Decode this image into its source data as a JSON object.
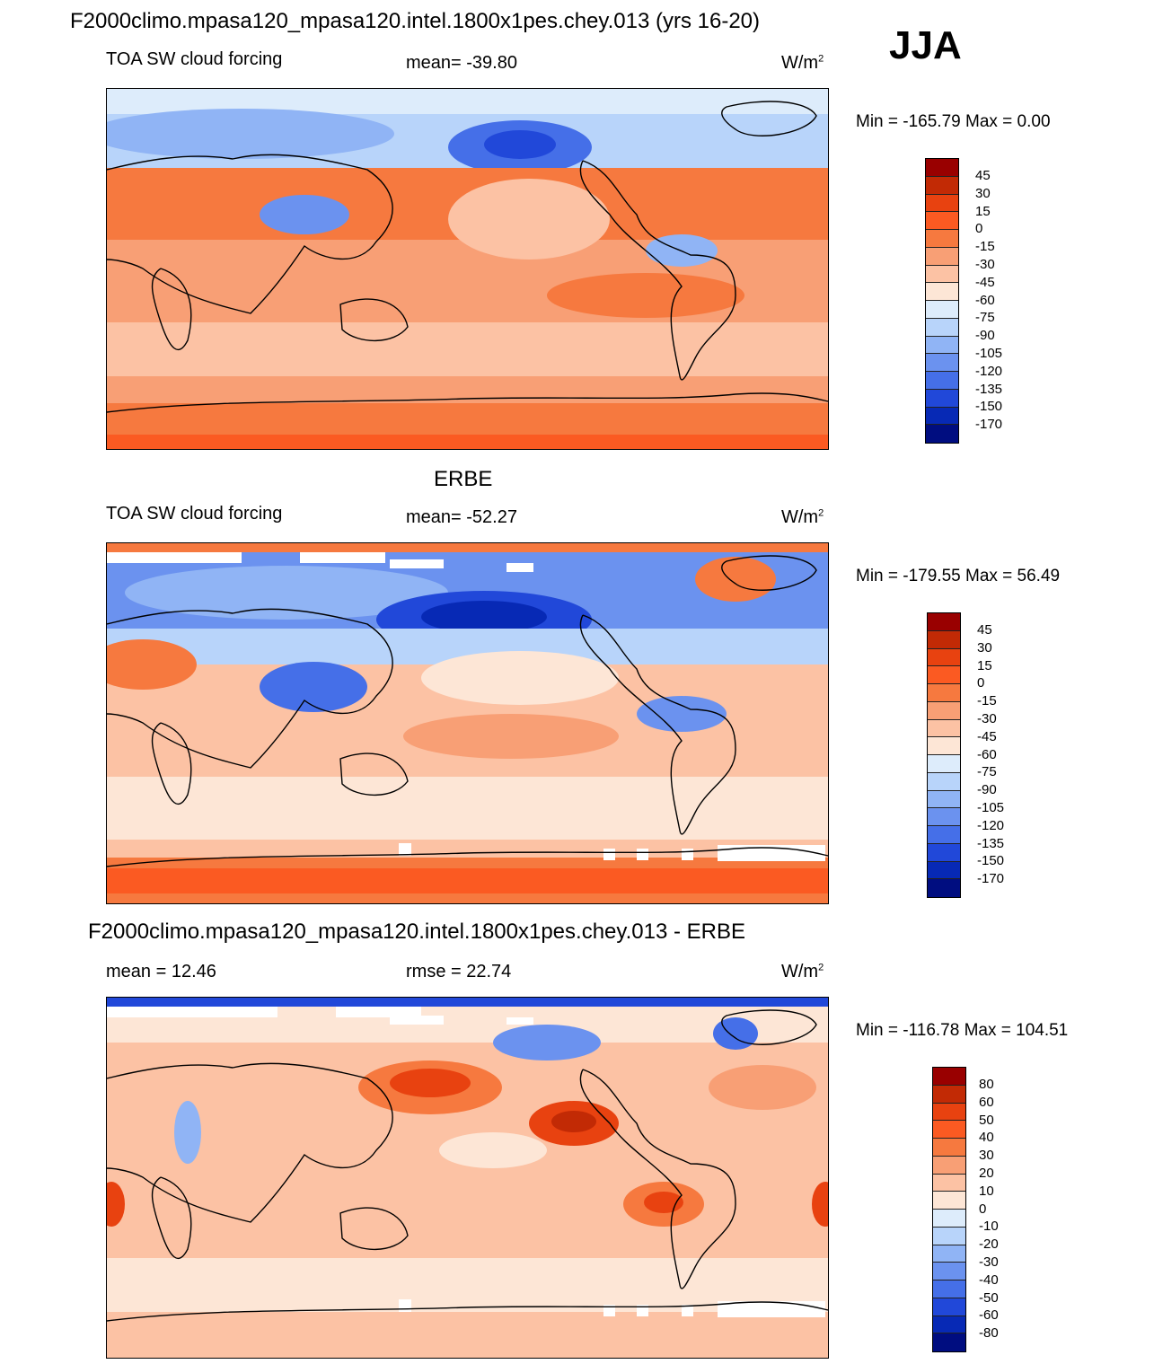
{
  "header": {
    "title": "F2000climo.mpasa120_mpasa120.intel.1800x1pes.chey.013 (yrs 16-20)",
    "season": "JJA"
  },
  "panels": [
    {
      "id": "model",
      "title": "F2000climo.mpasa120_mpasa120.intel.1800x1pes.chey.013 (yrs 16-20)",
      "left_text": "TOA SW cloud forcing",
      "center_text": "mean= -39.80",
      "units": "W/m",
      "units_exp": "2",
      "minmax": "Min = -165.79 Max =   0.00",
      "levels": [
        "45",
        "30",
        "15",
        "0",
        "-15",
        "-30",
        "-45",
        "-60",
        "-75",
        "-90",
        "-105",
        "-120",
        "-135",
        "-150",
        "-170"
      ],
      "colors": [
        "#990000",
        "#c22a05",
        "#e84210",
        "#fb5a22",
        "#f6793f",
        "#f89f75",
        "#fcc2a4",
        "#fde6d6",
        "#ddecfb",
        "#b8d4fa",
        "#90b4f5",
        "#6b92ef",
        "#456fe8",
        "#2148d9",
        "#0729b5",
        "#000d80"
      ]
    },
    {
      "id": "obs",
      "title": "ERBE",
      "left_text": "TOA SW cloud forcing",
      "center_text": "mean= -52.27",
      "units": "W/m",
      "units_exp": "2",
      "minmax": "Min = -179.55 Max =  56.49",
      "levels": [
        "45",
        "30",
        "15",
        "0",
        "-15",
        "-30",
        "-45",
        "-60",
        "-75",
        "-90",
        "-105",
        "-120",
        "-135",
        "-150",
        "-170"
      ],
      "colors": [
        "#990000",
        "#c22a05",
        "#e84210",
        "#fb5a22",
        "#f6793f",
        "#f89f75",
        "#fcc2a4",
        "#fde6d6",
        "#ddecfb",
        "#b8d4fa",
        "#90b4f5",
        "#6b92ef",
        "#456fe8",
        "#2148d9",
        "#0729b5",
        "#000d80"
      ]
    },
    {
      "id": "diff",
      "title": "F2000climo.mpasa120_mpasa120.intel.1800x1pes.chey.013 - ERBE",
      "left_text": "mean =  12.46",
      "center_text": "rmse =  22.74",
      "units": "W/m",
      "units_exp": "2",
      "minmax": "Min = -116.78 Max = 104.51",
      "levels": [
        "80",
        "60",
        "50",
        "40",
        "30",
        "20",
        "10",
        "0",
        "-10",
        "-20",
        "-30",
        "-40",
        "-50",
        "-60",
        "-80"
      ],
      "colors": [
        "#990000",
        "#c22a05",
        "#e84210",
        "#fb5a22",
        "#f6793f",
        "#f89f75",
        "#fcc2a4",
        "#fde6d6",
        "#ddecfb",
        "#b8d4fa",
        "#90b4f5",
        "#6b92ef",
        "#456fe8",
        "#2148d9",
        "#0729b5",
        "#000d80"
      ]
    }
  ]
}
